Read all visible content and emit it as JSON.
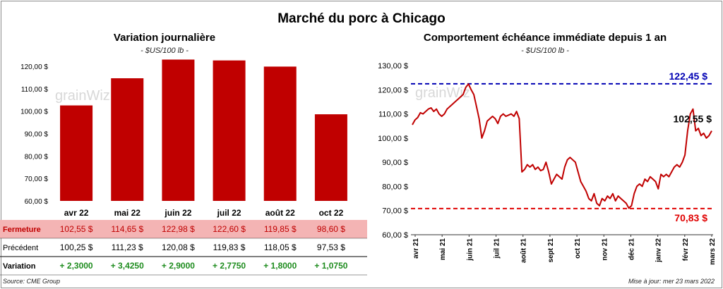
{
  "title": "Marché du porc à Chicago",
  "left": {
    "subtitle": "Variation journalière",
    "unit": "- $US/100 lb -",
    "watermark": "grainWiz",
    "chart_data": {
      "type": "bar",
      "title": "Variation journalière",
      "categories": [
        "avr 22",
        "mai 22",
        "juin 22",
        "juil 22",
        "août 22",
        "oct 22"
      ],
      "values": [
        102.55,
        114.65,
        122.98,
        122.6,
        119.85,
        98.6
      ],
      "ylim": [
        60,
        120
      ],
      "yticks": [
        "60,00 $",
        "70,00 $",
        "80,00 $",
        "90,00 $",
        "100,00 $",
        "110,00 $",
        "120,00 $"
      ],
      "bar_color": "#c00000",
      "xlabel": "",
      "ylabel": ""
    },
    "table": {
      "rows": [
        {
          "label": "Fermeture",
          "highlight": true,
          "cells": [
            "102,55  $",
            "114,65  $",
            "122,98  $",
            "122,60  $",
            "119,85  $",
            "98,60  $"
          ]
        },
        {
          "label": "Précédent",
          "highlight": false,
          "cells": [
            "100,25  $",
            "111,23  $",
            "120,08  $",
            "119,83  $",
            "118,05  $",
            "97,53  $"
          ]
        },
        {
          "label": "Variation",
          "highlight": false,
          "cells": [
            "+ 2,3000",
            "+ 3,4250",
            "+ 2,9000",
            "+ 2,7750",
            "+ 1,8000",
            "+ 1,0750"
          ]
        }
      ],
      "highlight_color": "#f4b4b4",
      "highlight_text_color": "#c00000",
      "variation_color": "#1e8c1e"
    },
    "source": "Source: CME Group"
  },
  "right": {
    "subtitle": "Comportement  échéance immédiate depuis 1 an",
    "unit": "- $US/100 lb -",
    "watermark": "grainWiz",
    "chart_data": {
      "type": "line",
      "title": "Comportement échéance immédiate depuis 1 an",
      "ylim": [
        60,
        130
      ],
      "yticks": [
        "60,00 $",
        "70,00 $",
        "80,00 $",
        "90,00 $",
        "100,00 $",
        "110,00 $",
        "120,00 $",
        "130,00 $"
      ],
      "xticks": [
        "avr 21",
        "mai 21",
        "juin 21",
        "juil 21",
        "août 21",
        "sept 21",
        "oct 21",
        "nov 21",
        "déc 21",
        "janv 22",
        "févr 22",
        "mars 22"
      ],
      "series": [
        {
          "name": "Échéance immédiate",
          "color": "#c00000",
          "values": [
            105.5,
            107.5,
            108.5,
            110.5,
            110,
            111,
            112,
            112.5,
            111,
            112,
            110,
            109,
            110,
            112,
            113,
            114,
            115,
            116,
            117,
            118,
            121,
            122.4,
            120,
            118,
            113,
            108,
            100,
            103,
            107,
            108,
            109,
            108,
            106,
            109,
            110,
            109,
            109.5,
            110,
            109,
            111,
            108,
            86,
            87,
            89,
            88,
            89,
            87,
            88,
            86.5,
            87,
            90,
            86,
            81,
            83,
            85,
            84,
            83,
            88,
            91,
            92,
            91,
            90,
            86,
            82,
            80,
            78,
            75,
            74,
            77,
            73,
            72,
            75,
            74,
            76,
            75,
            77,
            74,
            76,
            75,
            74,
            73,
            71,
            72,
            77,
            80,
            81,
            80,
            83,
            82,
            84,
            83,
            82,
            79,
            85,
            84,
            85,
            84,
            86,
            88,
            89,
            88,
            90,
            93,
            103,
            110,
            112,
            103,
            104,
            101,
            102,
            100,
            101,
            103
          ]
        }
      ],
      "reference_lines": [
        {
          "label": "122,45 $",
          "value": 122.45,
          "color": "#0000b4"
        },
        {
          "label": "70,83 $",
          "value": 70.83,
          "color": "#e00000"
        }
      ],
      "last_value_label": "102,55 $",
      "xlabel": "",
      "ylabel": ""
    },
    "update": "Mise à jour: mer 23 mars 2022"
  }
}
